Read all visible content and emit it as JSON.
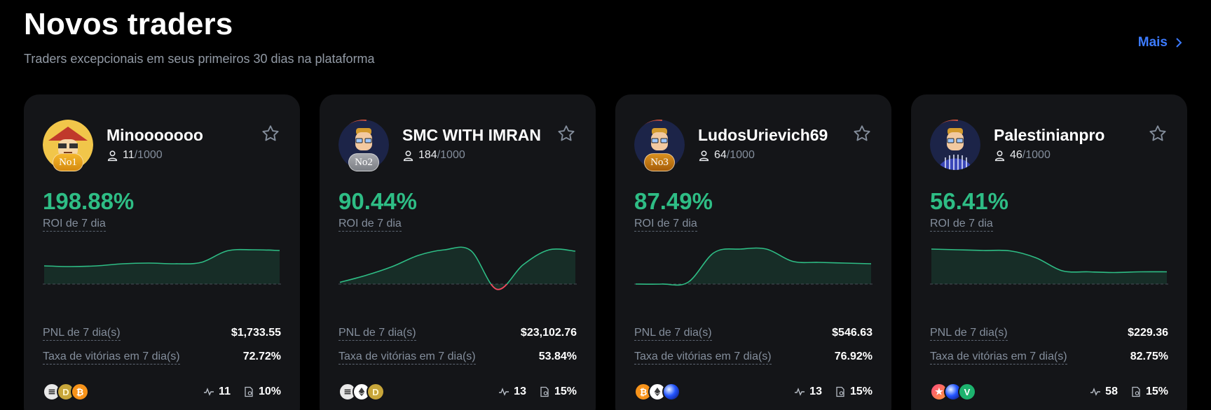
{
  "header": {
    "title": "Novos traders",
    "subtitle": "Traders excepcionais em seus primeiros 30 dias na plataforma",
    "more_label": "Mais"
  },
  "labels": {
    "roi": "ROI de 7 dia",
    "pnl": "PNL de 7 dia(s)",
    "winrate": "Taxa de vitórias em 7 dia(s)"
  },
  "colors": {
    "positive": "#2ebd85",
    "negative": "#f6465d",
    "accent": "#3c7bff"
  },
  "traders": [
    {
      "name": "Minooooooo",
      "rank": "No1",
      "rank_style": "gold",
      "avatar_icon": "cartoon-hat-avatar",
      "followers": "11",
      "followers_max": "/1000",
      "roi": "198.88%",
      "pnl": "$1,733.55",
      "winrate": "72.72%",
      "trades": "11",
      "share": "10%",
      "coins": [
        "ethena-icon",
        "dogecoin-icon",
        "bitcoin-icon"
      ],
      "roi_series": [
        0.52,
        0.5,
        0.52,
        0.58,
        0.6,
        0.58,
        0.62,
        0.95,
        0.98,
        0.96
      ]
    },
    {
      "name": "SMC WITH IMRAN",
      "rank": "No2",
      "rank_style": "silver",
      "avatar_icon": "cartoon-striped-avatar",
      "followers": "184",
      "followers_max": "/1000",
      "roi": "90.44%",
      "pnl": "$23,102.76",
      "winrate": "53.84%",
      "trades": "13",
      "share": "15%",
      "coins": [
        "ethena-icon",
        "ethereum-icon",
        "dogecoin-icon"
      ],
      "roi_series": [
        0.05,
        0.25,
        0.5,
        0.82,
        0.98,
        0.96,
        -0.15,
        0.55,
        0.98,
        0.94
      ]
    },
    {
      "name": "LudosUrievich69",
      "rank": "No3",
      "rank_style": "bronze",
      "avatar_icon": "cartoon-striped-avatar",
      "followers": "64",
      "followers_max": "/1000",
      "roi": "87.49%",
      "pnl": "$546.63",
      "winrate": "76.92%",
      "trades": "13",
      "share": "15%",
      "coins": [
        "bitcoin-icon",
        "ethereum-icon",
        "sphere-token-icon"
      ],
      "roi_series": [
        0.0,
        0.0,
        0.05,
        0.9,
        1.0,
        1.0,
        0.65,
        0.62,
        0.6,
        0.58
      ]
    },
    {
      "name": "Palestinianpro",
      "rank": "",
      "rank_style": "",
      "avatar_icon": "cartoon-striped-avatar",
      "followers": "46",
      "followers_max": "/1000",
      "roi": "56.41%",
      "pnl": "$229.36",
      "winrate": "82.75%",
      "trades": "58",
      "share": "15%",
      "coins": [
        "star-token-icon",
        "sphere-token-icon",
        "vine-token-icon"
      ],
      "roi_series": [
        1.0,
        0.98,
        0.96,
        0.95,
        0.75,
        0.38,
        0.35,
        0.33,
        0.35,
        0.35
      ]
    }
  ]
}
